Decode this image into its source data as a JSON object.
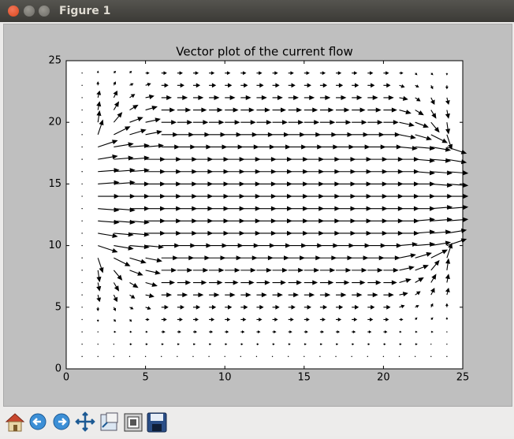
{
  "window": {
    "title": "Figure 1"
  },
  "chart_data": {
    "type": "quiver",
    "title": "Vector plot of the current flow",
    "x": [
      1,
      2,
      3,
      4,
      5,
      6,
      7,
      8,
      9,
      10,
      11,
      12,
      13,
      14,
      15,
      16,
      17,
      18,
      19,
      20,
      21,
      22,
      23,
      24
    ],
    "y": [
      1,
      2,
      3,
      4,
      5,
      6,
      7,
      8,
      9,
      10,
      11,
      12,
      13,
      14,
      15,
      16,
      17,
      18,
      19,
      20,
      21,
      22,
      23,
      24
    ],
    "u": [
      [
        0,
        0,
        0,
        0,
        0,
        0,
        0,
        0,
        0,
        0,
        0,
        0,
        0,
        0,
        0,
        0,
        0,
        0,
        0,
        0,
        0,
        0,
        0,
        0
      ],
      [
        0,
        0,
        0,
        0.1,
        0.1,
        0.1,
        0.1,
        0.1,
        0.1,
        0.1,
        0.1,
        0.1,
        0.1,
        0.1,
        0.1,
        0.1,
        0.1,
        0.1,
        0.1,
        0.1,
        0.1,
        0.1,
        0,
        0
      ],
      [
        0,
        0,
        0.1,
        0.1,
        0.1,
        0.2,
        0.2,
        0.2,
        0.2,
        0.2,
        0.2,
        0.2,
        0.2,
        0.2,
        0.2,
        0.2,
        0.2,
        0.2,
        0.2,
        0.2,
        0.1,
        0.1,
        0.1,
        0
      ],
      [
        0,
        0,
        0.1,
        0.1,
        0.2,
        0.3,
        0.3,
        0.3,
        0.3,
        0.3,
        0.3,
        0.3,
        0.3,
        0.3,
        0.3,
        0.3,
        0.3,
        0.3,
        0.3,
        0.3,
        0.2,
        0.1,
        0.1,
        0
      ],
      [
        0,
        0,
        0.1,
        0.2,
        0.3,
        0.4,
        0.4,
        0.4,
        0.4,
        0.4,
        0.4,
        0.4,
        0.4,
        0.4,
        0.4,
        0.4,
        0.4,
        0.4,
        0.4,
        0.4,
        0.3,
        0.2,
        0.1,
        0
      ],
      [
        0,
        0.1,
        0.2,
        0.3,
        0.5,
        0.6,
        0.6,
        0.6,
        0.6,
        0.6,
        0.6,
        0.6,
        0.6,
        0.6,
        0.6,
        0.6,
        0.6,
        0.6,
        0.6,
        0.6,
        0.5,
        0.3,
        0.2,
        0.1
      ],
      [
        0,
        0.1,
        0.3,
        0.5,
        0.7,
        0.8,
        0.8,
        0.8,
        0.8,
        0.8,
        0.8,
        0.8,
        0.8,
        0.8,
        0.8,
        0.8,
        0.8,
        0.8,
        0.8,
        0.8,
        0.7,
        0.5,
        0.3,
        0.1
      ],
      [
        0,
        0.1,
        0.5,
        0.8,
        0.9,
        0.9,
        0.9,
        0.9,
        0.9,
        0.9,
        0.9,
        0.9,
        0.9,
        0.9,
        0.9,
        0.9,
        0.9,
        0.9,
        0.9,
        0.9,
        0.9,
        0.8,
        0.5,
        0.1
      ],
      [
        0,
        0.3,
        1.0,
        1.0,
        1.0,
        1.0,
        1.0,
        1.0,
        1.0,
        1.0,
        1.0,
        1.0,
        1.0,
        1.0,
        1.0,
        1.0,
        1.0,
        1.0,
        1.0,
        1.0,
        1.0,
        1.0,
        1.0,
        0.3
      ],
      [
        0,
        1.2,
        1.2,
        1.2,
        1.1,
        1.1,
        1.1,
        1.1,
        1.1,
        1.1,
        1.1,
        1.1,
        1.1,
        1.1,
        1.1,
        1.1,
        1.1,
        1.1,
        1.1,
        1.1,
        1.1,
        1.2,
        1.2,
        1.2
      ],
      [
        0,
        1.2,
        1.2,
        1.2,
        1.2,
        1.2,
        1.2,
        1.2,
        1.2,
        1.2,
        1.2,
        1.2,
        1.2,
        1.2,
        1.2,
        1.2,
        1.2,
        1.2,
        1.2,
        1.2,
        1.2,
        1.2,
        1.2,
        1.2
      ],
      [
        0,
        1.3,
        1.3,
        1.2,
        1.2,
        1.2,
        1.2,
        1.2,
        1.2,
        1.2,
        1.2,
        1.2,
        1.2,
        1.2,
        1.2,
        1.2,
        1.2,
        1.2,
        1.2,
        1.2,
        1.2,
        1.2,
        1.3,
        1.3
      ],
      [
        0,
        1.3,
        1.3,
        1.2,
        1.2,
        1.2,
        1.2,
        1.2,
        1.2,
        1.2,
        1.2,
        1.2,
        1.2,
        1.2,
        1.2,
        1.2,
        1.2,
        1.2,
        1.2,
        1.2,
        1.2,
        1.2,
        1.3,
        1.3
      ],
      [
        0,
        1.3,
        1.3,
        1.2,
        1.2,
        1.2,
        1.2,
        1.2,
        1.2,
        1.2,
        1.2,
        1.2,
        1.2,
        1.2,
        1.2,
        1.2,
        1.2,
        1.2,
        1.2,
        1.2,
        1.2,
        1.2,
        1.3,
        1.3
      ],
      [
        0,
        1.3,
        1.3,
        1.2,
        1.2,
        1.2,
        1.2,
        1.2,
        1.2,
        1.2,
        1.2,
        1.2,
        1.2,
        1.2,
        1.2,
        1.2,
        1.2,
        1.2,
        1.2,
        1.2,
        1.2,
        1.2,
        1.3,
        1.3
      ],
      [
        0,
        1.3,
        1.3,
        1.2,
        1.2,
        1.2,
        1.2,
        1.2,
        1.2,
        1.2,
        1.2,
        1.2,
        1.2,
        1.2,
        1.2,
        1.2,
        1.2,
        1.2,
        1.2,
        1.2,
        1.2,
        1.2,
        1.3,
        1.3
      ],
      [
        0,
        1.2,
        1.2,
        1.2,
        1.2,
        1.2,
        1.2,
        1.2,
        1.2,
        1.2,
        1.2,
        1.2,
        1.2,
        1.2,
        1.2,
        1.2,
        1.2,
        1.2,
        1.2,
        1.2,
        1.2,
        1.2,
        1.2,
        1.2
      ],
      [
        0,
        1.2,
        1.2,
        1.2,
        1.1,
        1.1,
        1.1,
        1.1,
        1.1,
        1.1,
        1.1,
        1.1,
        1.1,
        1.1,
        1.1,
        1.1,
        1.1,
        1.1,
        1.1,
        1.1,
        1.1,
        1.2,
        1.2,
        1.2
      ],
      [
        0,
        0.3,
        1.0,
        1.0,
        1.0,
        1.0,
        1.0,
        1.0,
        1.0,
        1.0,
        1.0,
        1.0,
        1.0,
        1.0,
        1.0,
        1.0,
        1.0,
        1.0,
        1.0,
        1.0,
        1.0,
        1.0,
        1.0,
        0.3
      ],
      [
        0,
        0.1,
        0.5,
        0.8,
        0.9,
        0.9,
        0.9,
        0.9,
        0.9,
        0.9,
        0.9,
        0.9,
        0.9,
        0.9,
        0.9,
        0.9,
        0.9,
        0.9,
        0.9,
        0.9,
        0.9,
        0.8,
        0.5,
        0.1
      ],
      [
        0,
        0.1,
        0.3,
        0.5,
        0.7,
        0.8,
        0.8,
        0.8,
        0.8,
        0.8,
        0.8,
        0.8,
        0.8,
        0.8,
        0.8,
        0.8,
        0.8,
        0.8,
        0.8,
        0.8,
        0.7,
        0.5,
        0.3,
        0.1
      ],
      [
        0,
        0.1,
        0.2,
        0.3,
        0.5,
        0.6,
        0.6,
        0.6,
        0.6,
        0.6,
        0.6,
        0.6,
        0.6,
        0.6,
        0.6,
        0.6,
        0.6,
        0.6,
        0.6,
        0.6,
        0.5,
        0.3,
        0.2,
        0.1
      ],
      [
        0,
        0,
        0.1,
        0.2,
        0.3,
        0.4,
        0.4,
        0.4,
        0.4,
        0.4,
        0.4,
        0.4,
        0.4,
        0.4,
        0.4,
        0.4,
        0.4,
        0.4,
        0.4,
        0.4,
        0.3,
        0.2,
        0.1,
        0
      ],
      [
        0,
        0,
        0.1,
        0.1,
        0.2,
        0.3,
        0.3,
        0.3,
        0.3,
        0.3,
        0.3,
        0.3,
        0.3,
        0.3,
        0.3,
        0.3,
        0.3,
        0.3,
        0.3,
        0.3,
        0.2,
        0.1,
        0.1,
        0
      ]
    ],
    "v": [
      [
        0,
        0,
        0,
        0,
        0,
        0,
        0,
        0,
        0,
        0,
        0,
        0,
        0,
        0,
        0,
        0,
        0,
        0,
        0,
        0,
        0,
        0,
        0,
        0
      ],
      [
        0,
        0,
        0,
        0,
        0,
        0,
        0,
        0,
        0,
        0,
        0,
        0,
        0,
        0,
        0,
        0,
        0,
        0,
        0,
        0,
        0,
        0,
        0,
        0
      ],
      [
        0,
        0,
        0,
        0,
        0,
        0,
        0,
        0,
        0,
        0,
        0,
        0,
        0,
        0,
        0,
        0,
        0,
        0,
        0,
        0,
        0,
        0,
        0,
        0
      ],
      [
        0,
        -0.1,
        -0.1,
        -0.1,
        0,
        0,
        0,
        0,
        0,
        0,
        0,
        0,
        0,
        0,
        0,
        0,
        0,
        0,
        0,
        0,
        0,
        0.1,
        0.1,
        0.1
      ],
      [
        0,
        -0.2,
        -0.2,
        -0.1,
        -0.1,
        0,
        0,
        0,
        0,
        0,
        0,
        0,
        0,
        0,
        0,
        0,
        0,
        0,
        0,
        0,
        0.1,
        0.1,
        0.2,
        0.2
      ],
      [
        0,
        -0.4,
        -0.4,
        -0.2,
        -0.1,
        0,
        0,
        0,
        0,
        0,
        0,
        0,
        0,
        0,
        0,
        0,
        0,
        0,
        0,
        0,
        0.1,
        0.2,
        0.4,
        0.4
      ],
      [
        0,
        -0.5,
        -0.5,
        -0.3,
        -0.2,
        0,
        0,
        0,
        0,
        0,
        0,
        0,
        0,
        0,
        0,
        0,
        0,
        0,
        0,
        0,
        0.2,
        0.3,
        0.5,
        0.5
      ],
      [
        0,
        -0.7,
        -0.6,
        -0.3,
        -0.2,
        0,
        0,
        0,
        0,
        0,
        0,
        0,
        0,
        0,
        0,
        0,
        0,
        0,
        0,
        0,
        0.2,
        0.3,
        0.6,
        0.7
      ],
      [
        0,
        -0.9,
        -0.5,
        -0.3,
        -0.2,
        0,
        0,
        0,
        0,
        0,
        0,
        0,
        0,
        0,
        0,
        0,
        0,
        0,
        0,
        0,
        0.2,
        0.3,
        0.5,
        0.9
      ],
      [
        0,
        -0.4,
        -0.2,
        -0.1,
        -0.1,
        0,
        0,
        0,
        0,
        0,
        0,
        0,
        0,
        0,
        0,
        0,
        0,
        0,
        0,
        0,
        0.1,
        0.1,
        0.2,
        0.4
      ],
      [
        0,
        -0.2,
        -0.1,
        -0.1,
        0,
        0,
        0,
        0,
        0,
        0,
        0,
        0,
        0,
        0,
        0,
        0,
        0,
        0,
        0,
        0,
        0,
        0.1,
        0.1,
        0.2
      ],
      [
        0,
        -0.1,
        -0.1,
        -0.1,
        0,
        0,
        0,
        0,
        0,
        0,
        0,
        0,
        0,
        0,
        0,
        0,
        0,
        0,
        0,
        0,
        0,
        0.1,
        0.1,
        0.1
      ],
      [
        0,
        -0.1,
        -0.1,
        0,
        0,
        0,
        0,
        0,
        0,
        0,
        0,
        0,
        0,
        0,
        0,
        0,
        0,
        0,
        0,
        0,
        0,
        0,
        0.1,
        0.1
      ],
      [
        0,
        0,
        0,
        0,
        0,
        0,
        0,
        0,
        0,
        0,
        0,
        0,
        0,
        0,
        0,
        0,
        0,
        0,
        0,
        0,
        0,
        0,
        0,
        0
      ],
      [
        0,
        0.1,
        0.1,
        0,
        0,
        0,
        0,
        0,
        0,
        0,
        0,
        0,
        0,
        0,
        0,
        0,
        0,
        0,
        0,
        0,
        0,
        0,
        -0.1,
        -0.1
      ],
      [
        0,
        0.1,
        0.1,
        0.1,
        0,
        0,
        0,
        0,
        0,
        0,
        0,
        0,
        0,
        0,
        0,
        0,
        0,
        0,
        0,
        0,
        0,
        -0.1,
        -0.1,
        -0.1
      ],
      [
        0,
        0.2,
        0.1,
        0.1,
        0,
        0,
        0,
        0,
        0,
        0,
        0,
        0,
        0,
        0,
        0,
        0,
        0,
        0,
        0,
        0,
        0,
        -0.1,
        -0.1,
        -0.2
      ],
      [
        0,
        0.4,
        0.2,
        0.1,
        0.1,
        0,
        0,
        0,
        0,
        0,
        0,
        0,
        0,
        0,
        0,
        0,
        0,
        0,
        0,
        0,
        -0.1,
        -0.1,
        -0.2,
        -0.4
      ],
      [
        0,
        0.9,
        0.5,
        0.3,
        0.2,
        0,
        0,
        0,
        0,
        0,
        0,
        0,
        0,
        0,
        0,
        0,
        0,
        0,
        0,
        0,
        -0.2,
        -0.3,
        -0.5,
        -0.9
      ],
      [
        0,
        0.7,
        0.6,
        0.3,
        0.2,
        0,
        0,
        0,
        0,
        0,
        0,
        0,
        0,
        0,
        0,
        0,
        0,
        0,
        0,
        0,
        -0.2,
        -0.3,
        -0.6,
        -0.7
      ],
      [
        0,
        0.5,
        0.5,
        0.3,
        0.2,
        0,
        0,
        0,
        0,
        0,
        0,
        0,
        0,
        0,
        0,
        0,
        0,
        0,
        0,
        0,
        -0.2,
        -0.3,
        -0.5,
        -0.5
      ],
      [
        0,
        0.4,
        0.4,
        0.2,
        0.1,
        0,
        0,
        0,
        0,
        0,
        0,
        0,
        0,
        0,
        0,
        0,
        0,
        0,
        0,
        0,
        -0.1,
        -0.2,
        -0.4,
        -0.4
      ],
      [
        0,
        0.2,
        0.2,
        0.1,
        0.1,
        0,
        0,
        0,
        0,
        0,
        0,
        0,
        0,
        0,
        0,
        0,
        0,
        0,
        0,
        0,
        -0.1,
        -0.1,
        -0.2,
        -0.2
      ],
      [
        0,
        0.1,
        0.1,
        0.1,
        0,
        0,
        0,
        0,
        0,
        0,
        0,
        0,
        0,
        0,
        0,
        0,
        0,
        0,
        0,
        0,
        0,
        -0.1,
        -0.1,
        -0.1
      ]
    ],
    "color": "#000000",
    "xlim": [
      0,
      25
    ],
    "ylim": [
      0,
      25
    ],
    "xticks": [
      0,
      5,
      10,
      15,
      20,
      25
    ],
    "yticks": [
      0,
      5,
      10,
      15,
      20,
      25
    ]
  }
}
